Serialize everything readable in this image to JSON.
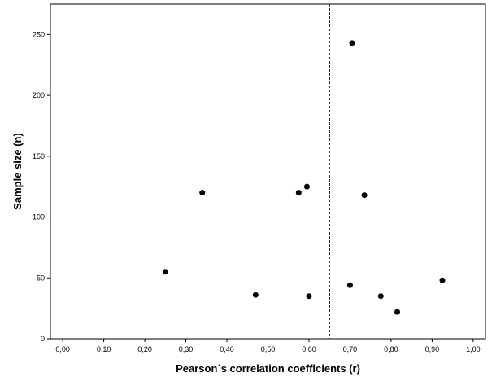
{
  "chart_data": {
    "type": "scatter",
    "xlabel": "Pearson´s correlation coefficients (r)",
    "ylabel": "Sample size (n)",
    "xlim": [
      -0.03,
      1.03
    ],
    "ylim": [
      0,
      275
    ],
    "x_ticks": [
      0,
      0.1,
      0.2,
      0.3,
      0.4,
      0.5,
      0.6,
      0.7,
      0.8,
      0.9,
      1.0
    ],
    "x_tick_labels": [
      "0,00",
      "0,10",
      "0,20",
      "0,30",
      "0,40",
      "0,50",
      "0,60",
      "0,70",
      "0,80",
      "0,90",
      "1,00"
    ],
    "y_ticks": [
      0,
      50,
      100,
      150,
      200,
      250
    ],
    "y_tick_labels": [
      "0",
      "50",
      "100",
      "150",
      "200",
      "250"
    ],
    "reference_line": {
      "axis": "x",
      "value": 0.65,
      "style": "dashed"
    },
    "grid": false,
    "points": [
      {
        "x": 0.25,
        "y": 55
      },
      {
        "x": 0.34,
        "y": 120
      },
      {
        "x": 0.47,
        "y": 36
      },
      {
        "x": 0.575,
        "y": 120
      },
      {
        "x": 0.595,
        "y": 125
      },
      {
        "x": 0.6,
        "y": 35
      },
      {
        "x": 0.7,
        "y": 44
      },
      {
        "x": 0.705,
        "y": 243
      },
      {
        "x": 0.735,
        "y": 118
      },
      {
        "x": 0.775,
        "y": 35
      },
      {
        "x": 0.815,
        "y": 22
      },
      {
        "x": 0.925,
        "y": 48
      }
    ],
    "colors": {
      "points": "#000000",
      "axes": "#000000",
      "background": "#ffffff"
    }
  }
}
